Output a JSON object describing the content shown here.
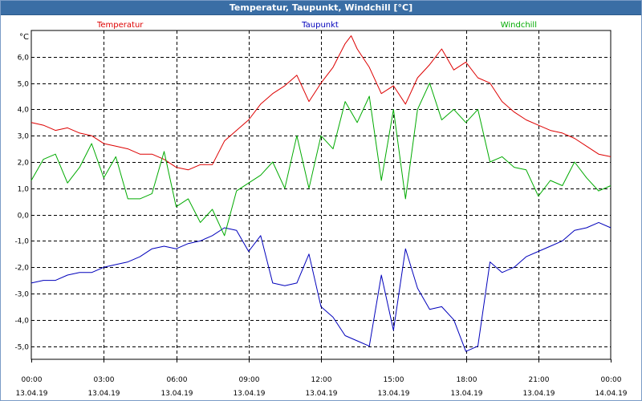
{
  "window": {
    "title": "Temperatur, Taupunkt, Windchill [°C]"
  },
  "chart_data": {
    "type": "line",
    "title": "Temperatur, Taupunkt, Windchill [°C]",
    "ylabel": "°C",
    "ylim": [
      -5.5,
      7.0
    ],
    "xlim": [
      0,
      24
    ],
    "grid": true,
    "y_ticks": [
      -5,
      -4,
      -3,
      -2,
      -1,
      0,
      1,
      2,
      3,
      4,
      5,
      6
    ],
    "y_tick_labels": [
      "-5,0",
      "-4,0",
      "-3,0",
      "-2,0",
      "-1,0",
      "0,0",
      "1,0",
      "2,0",
      "3,0",
      "4,0",
      "5,0",
      "6,0"
    ],
    "x_ticks": [
      0,
      3,
      6,
      9,
      12,
      15,
      18,
      21,
      24
    ],
    "x_tick_labels": [
      {
        "time": "00:00",
        "date": "13.04.19"
      },
      {
        "time": "03:00",
        "date": "13.04.19"
      },
      {
        "time": "06:00",
        "date": "13.04.19"
      },
      {
        "time": "09:00",
        "date": "13.04.19"
      },
      {
        "time": "12:00",
        "date": "13.04.19"
      },
      {
        "time": "15:00",
        "date": "13.04.19"
      },
      {
        "time": "18:00",
        "date": "13.04.19"
      },
      {
        "time": "21:00",
        "date": "13.04.19"
      },
      {
        "time": "00:00",
        "date": "14.04.19"
      }
    ],
    "series": [
      {
        "name": "Temperatur",
        "color": "#dd0000",
        "legend_anchor": "start",
        "x": [
          0,
          0.5,
          1,
          1.5,
          2,
          2.5,
          3,
          3.5,
          4,
          4.5,
          5,
          5.5,
          6,
          6.5,
          7,
          7.5,
          8,
          8.5,
          9,
          9.5,
          10,
          10.5,
          11,
          11.5,
          12,
          12.5,
          13,
          13.25,
          13.5,
          14,
          14.5,
          15,
          15.5,
          16,
          16.5,
          17,
          17.5,
          18,
          18.5,
          19,
          19.5,
          20,
          20.5,
          21,
          21.5,
          22,
          22.5,
          23,
          23.5,
          24
        ],
        "values": [
          3.5,
          3.4,
          3.2,
          3.3,
          3.1,
          3.0,
          2.7,
          2.6,
          2.5,
          2.3,
          2.3,
          2.1,
          1.8,
          1.7,
          1.9,
          1.9,
          2.8,
          3.2,
          3.6,
          4.2,
          4.6,
          4.9,
          5.3,
          4.3,
          5.0,
          5.6,
          6.5,
          6.8,
          6.3,
          5.6,
          4.6,
          4.9,
          4.2,
          5.2,
          5.7,
          6.3,
          5.5,
          5.8,
          5.2,
          5.0,
          4.3,
          3.9,
          3.6,
          3.4,
          3.2,
          3.1,
          2.9,
          2.6,
          2.3,
          2.2
        ]
      },
      {
        "name": "Taupunkt",
        "color": "#0000bb",
        "legend_anchor": "middle",
        "x": [
          0,
          0.5,
          1,
          1.5,
          2,
          2.5,
          3,
          3.5,
          4,
          4.5,
          5,
          5.5,
          6,
          6.5,
          7,
          7.5,
          8,
          8.5,
          9,
          9.5,
          10,
          10.5,
          11,
          11.5,
          12,
          12.5,
          13,
          13.5,
          14,
          14.5,
          15,
          15.5,
          16,
          16.5,
          17,
          17.5,
          18,
          18.5,
          19,
          19.5,
          20,
          20.5,
          21,
          21.5,
          22,
          22.5,
          23,
          23.5,
          24
        ],
        "values": [
          -2.6,
          -2.5,
          -2.5,
          -2.3,
          -2.2,
          -2.2,
          -2.0,
          -1.9,
          -1.8,
          -1.6,
          -1.3,
          -1.2,
          -1.3,
          -1.1,
          -1.0,
          -0.8,
          -0.5,
          -0.6,
          -1.4,
          -0.8,
          -2.6,
          -2.7,
          -2.6,
          -1.5,
          -3.5,
          -3.9,
          -4.6,
          -4.8,
          -5.0,
          -2.3,
          -4.4,
          -1.3,
          -2.8,
          -3.6,
          -3.5,
          -4.0,
          -5.2,
          -5.0,
          -1.8,
          -2.2,
          -2.0,
          -1.6,
          -1.4,
          -1.2,
          -1.0,
          -0.6,
          -0.5,
          -0.3,
          -0.5
        ]
      },
      {
        "name": "Windchill",
        "color": "#00aa00",
        "legend_anchor": "end",
        "x": [
          0,
          0.5,
          1,
          1.5,
          2,
          2.5,
          3,
          3.5,
          4,
          4.5,
          5,
          5.5,
          6,
          6.5,
          7,
          7.5,
          8,
          8.5,
          9,
          9.5,
          10,
          10.5,
          11,
          11.5,
          12,
          12.5,
          13,
          13.5,
          14,
          14.5,
          15,
          15.5,
          16,
          16.5,
          17,
          17.5,
          18,
          18.5,
          19,
          19.5,
          20,
          20.5,
          21,
          21.5,
          22,
          22.5,
          23,
          23.5,
          24
        ],
        "values": [
          1.3,
          2.1,
          2.3,
          1.2,
          1.8,
          2.7,
          1.4,
          2.2,
          0.6,
          0.6,
          0.8,
          2.4,
          0.3,
          0.6,
          -0.3,
          0.2,
          -0.8,
          0.9,
          1.2,
          1.5,
          2.0,
          1.0,
          3.0,
          1.0,
          3.0,
          2.5,
          4.3,
          3.5,
          4.5,
          1.3,
          4.0,
          0.6,
          4.0,
          5.0,
          3.6,
          4.0,
          3.5,
          4.0,
          2.0,
          2.2,
          1.8,
          1.7,
          0.7,
          1.3,
          1.1,
          2.0,
          1.4,
          0.9,
          1.1
        ]
      }
    ]
  }
}
